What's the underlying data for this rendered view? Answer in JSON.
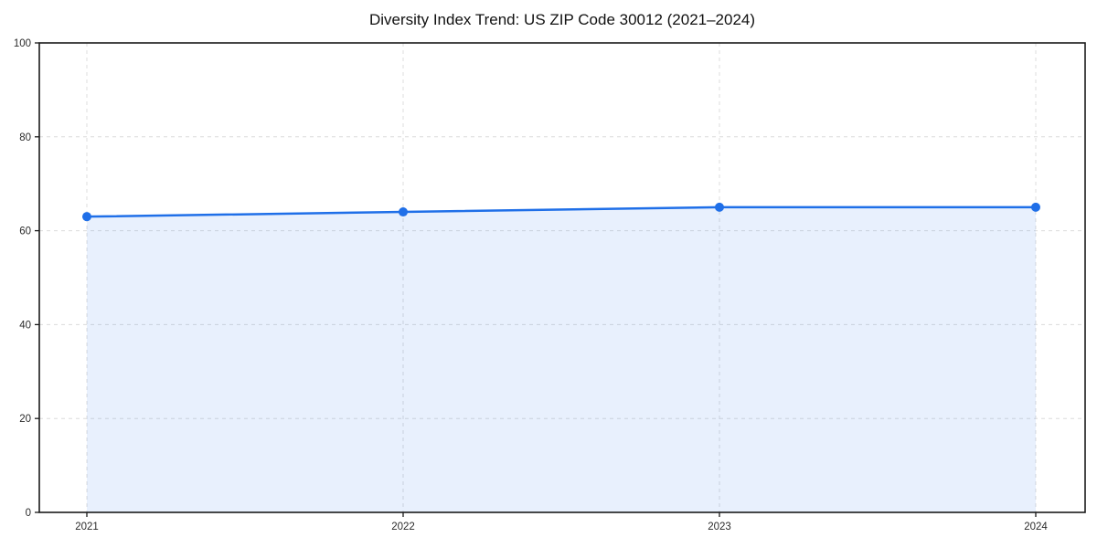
{
  "chart_data": {
    "type": "area",
    "title": "Diversity Index Trend: US ZIP Code 30012 (2021–2024)",
    "categories": [
      "2021",
      "2022",
      "2023",
      "2024"
    ],
    "values": [
      63,
      64,
      65,
      65
    ],
    "xlabel": "",
    "ylabel": "",
    "ylim": [
      0,
      100
    ],
    "yticks": [
      0,
      20,
      40,
      60,
      80,
      100
    ],
    "grid": true,
    "grid_style": "dashed",
    "legend": "none",
    "colors": {
      "line": "#1f6fe8",
      "marker": "#1f6fe8",
      "fill": "#1f6fe8",
      "fill_opacity": 0.1,
      "gridline": "#dcdcdc",
      "spine": "#1a1a1a",
      "tick_text": "#2b2b2b",
      "title_text": "#111111",
      "background": "#ffffff"
    }
  }
}
